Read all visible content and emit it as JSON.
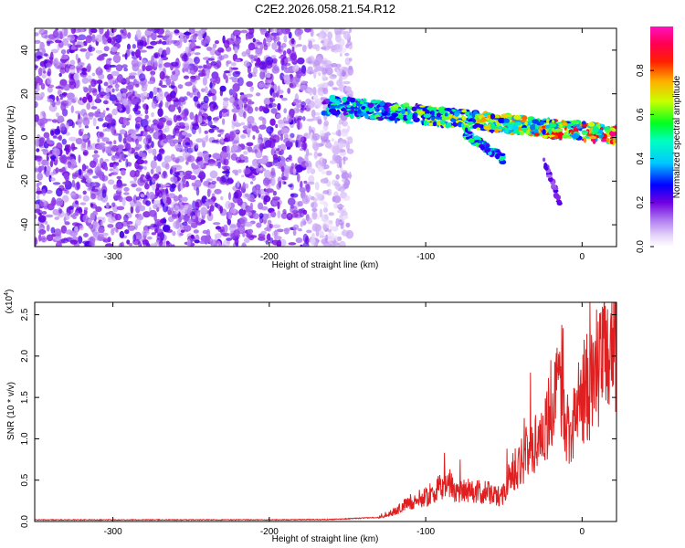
{
  "figure_title": "C2E2.2026.058.21.54.R12",
  "chart_data": [
    {
      "type": "heatmap",
      "title": "C2E2.2026.058.21.54.R12",
      "xlabel": "Height of straight line (km)",
      "ylabel": "Frequency (Hz)",
      "xlim": [
        -350,
        22
      ],
      "ylim": [
        -50,
        50
      ],
      "xticks": [
        -300,
        -200,
        -100,
        0
      ],
      "yticks": [
        -40,
        -20,
        0,
        20,
        40
      ],
      "colorbar": {
        "label": "Normalized spectral amplitude",
        "range": [
          0.0,
          1.0
        ],
        "ticks": [
          0.0,
          0.2,
          0.4,
          0.6,
          0.8
        ],
        "tick_labels": [
          "0.0",
          "0.2",
          "0.4",
          "0.6",
          "0.8"
        ],
        "colors": [
          "#ffffff",
          "#b07cf0",
          "#7000e0",
          "#0000ff",
          "#00e0ff",
          "#00ff60",
          "#d0ff00",
          "#ffa000",
          "#ff0000",
          "#ff00a0"
        ]
      },
      "regions": [
        {
          "name": "background noise",
          "x_range": [
            -350,
            -160
          ],
          "y_range": [
            -50,
            50
          ],
          "amplitude": 0.15
        },
        {
          "name": "signal band",
          "x_start": -165,
          "x_end": 22,
          "freq_start": 15,
          "freq_end": 1,
          "width_hz": 8,
          "amplitude_start": 0.45,
          "amplitude_end": 0.9
        },
        {
          "name": "lower branch",
          "x_start": -75,
          "x_end": -50,
          "freq_start": 2,
          "freq_end": -10,
          "amplitude": 0.45
        },
        {
          "name": "faint tail",
          "x_start": -25,
          "x_end": -14,
          "freq_start": -10,
          "freq_end": -30,
          "amplitude": 0.2
        }
      ]
    },
    {
      "type": "line",
      "title": "",
      "xlabel": "Height of straight line (km)",
      "ylabel": "SNR (10 * v/v)",
      "y_scale_label": "(x10",
      "y_scale_exponent": "4",
      "xlim": [
        -350,
        22
      ],
      "ylim": [
        0,
        2.65
      ],
      "xticks": [
        -300,
        -200,
        -100,
        0
      ],
      "yticks": [
        0.0,
        0.5,
        1.0,
        1.5,
        2.0,
        2.5
      ],
      "ytick_labels": [
        "0.0",
        "0.5",
        "1.0",
        "1.5",
        "2.0",
        "2.5"
      ],
      "color": "#e02020",
      "series": [
        {
          "name": "SNR",
          "x": [
            -350,
            -300,
            -250,
            -200,
            -160,
            -130,
            -120,
            -115,
            -110,
            -100,
            -95,
            -90,
            -85,
            -80,
            -75,
            -70,
            -65,
            -60,
            -55,
            -50,
            -45,
            -40,
            -35,
            -30,
            -25,
            -20,
            -15,
            -12,
            -10,
            -5,
            0,
            5,
            10,
            15,
            22
          ],
          "y": [
            0.02,
            0.02,
            0.02,
            0.02,
            0.025,
            0.05,
            0.1,
            0.15,
            0.2,
            0.25,
            0.3,
            0.35,
            0.4,
            0.3,
            0.35,
            0.3,
            0.3,
            0.3,
            0.25,
            0.3,
            0.5,
            0.6,
            0.7,
            0.8,
            0.95,
            1.1,
            1.3,
            1.5,
            0.95,
            1.05,
            1.3,
            1.4,
            1.6,
            1.75,
            1.9
          ],
          "spikes": [
            {
              "x": -120,
              "y": 0.15
            },
            {
              "x": -88,
              "y": 0.83
            },
            {
              "x": -78,
              "y": 0.75
            },
            {
              "x": -48,
              "y": 0.88
            },
            {
              "x": -37,
              "y": 1.25
            },
            {
              "x": -33,
              "y": 1.8
            },
            {
              "x": -20,
              "y": 1.95
            },
            {
              "x": -16,
              "y": 2.1
            },
            {
              "x": 5,
              "y": 2.65
            },
            {
              "x": 18,
              "y": 2.25
            }
          ]
        }
      ]
    }
  ]
}
